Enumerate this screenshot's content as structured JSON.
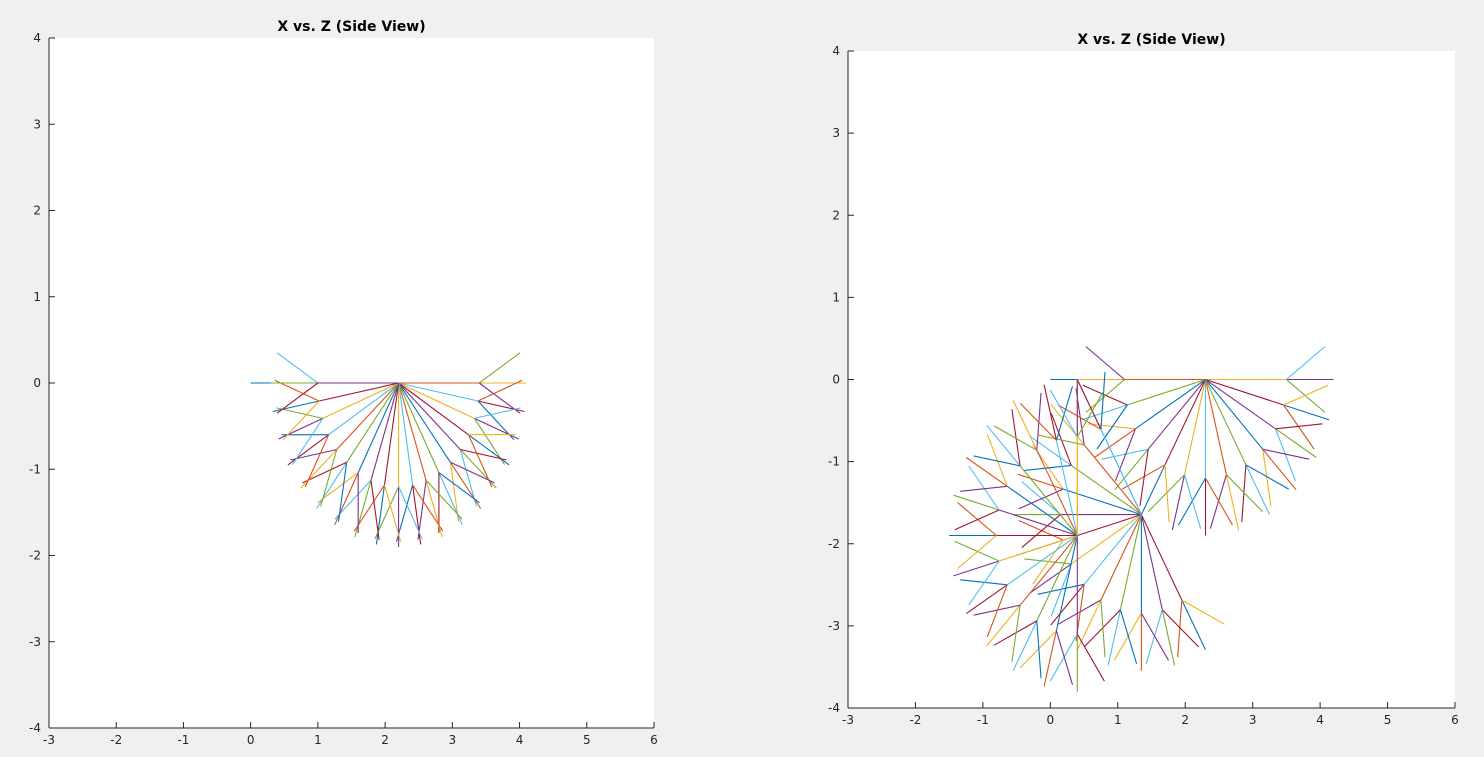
{
  "window": {
    "background": "#f0f0f0"
  },
  "chart_data": [
    {
      "type": "line",
      "title": "X vs. Z (Side View)",
      "xlabel": "",
      "ylabel": "",
      "xlim": [
        -3,
        6
      ],
      "ylim": [
        -4,
        4
      ],
      "xticks": [
        -3,
        -2,
        -1,
        0,
        1,
        2,
        3,
        4,
        5,
        6
      ],
      "yticks": [
        -4,
        -3,
        -2,
        -1,
        0,
        1,
        2,
        3,
        4
      ],
      "xtick_labels": [
        "-3",
        "-2",
        "-1",
        "0",
        "1",
        "2",
        "3",
        "4",
        "5",
        "6"
      ],
      "ytick_labels": [
        "-4",
        "-3",
        "-2",
        "-1",
        "0",
        "1",
        "2",
        "3",
        "4"
      ],
      "grid": false,
      "description": "Planar arm linkage sweep: base segment from x=0 to pivot near (2.2, 0), then a fan of elbow and wrist segments",
      "link_lengths": [
        2.2,
        1.2,
        0.7
      ],
      "base": [
        0,
        0
      ],
      "first_joint_angles_deg": [
        0
      ],
      "second_joint_angles_deg": [
        0,
        -10,
        -20,
        -30,
        -40,
        -50,
        -60,
        -70,
        -80,
        -90,
        -100,
        -110,
        -120,
        -130,
        -140,
        -150,
        -160,
        -170,
        -180
      ],
      "relative_third_angles_deg": [
        0,
        -30,
        30
      ],
      "series_colors": [
        "#0072BD",
        "#D95319",
        "#EDB120",
        "#7E2F8E",
        "#77AC30",
        "#4DBEEE",
        "#A2142F"
      ]
    },
    {
      "type": "line",
      "title": "X vs. Z (Side View)",
      "xlabel": "",
      "ylabel": "",
      "xlim": [
        -3,
        6
      ],
      "ylim": [
        -4,
        4
      ],
      "xticks": [
        -3,
        -2,
        -1,
        0,
        1,
        2,
        3,
        4,
        5,
        6
      ],
      "yticks": [
        -4,
        -3,
        -2,
        -1,
        0,
        1,
        2,
        3,
        4
      ],
      "xtick_labels": [
        "-3",
        "-2",
        "-1",
        "0",
        "1",
        "2",
        "3",
        "4",
        "5",
        "6"
      ],
      "ytick_labels": [
        "-4",
        "-3",
        "-2",
        "-1",
        "0",
        "1",
        "2",
        "3",
        "4"
      ],
      "grid": false,
      "description": "Planar arm linkage sweep with three base orientations, each producing a fan of elbow and wrist segments",
      "link_lengths": [
        0.4,
        1.9,
        1.2,
        0.7
      ],
      "base": [
        0,
        0
      ],
      "first_joint_angles_deg": [
        0,
        -60,
        -90
      ],
      "second_joint_angles_deg": [
        0,
        -15,
        -30,
        -45,
        -60,
        -75,
        -90,
        -105,
        -120,
        -135,
        -150,
        -165,
        -180
      ],
      "relative_third_angles_deg": [
        0,
        -35,
        35
      ],
      "series_colors": [
        "#0072BD",
        "#D95319",
        "#EDB120",
        "#7E2F8E",
        "#77AC30",
        "#4DBEEE",
        "#A2142F"
      ]
    }
  ]
}
